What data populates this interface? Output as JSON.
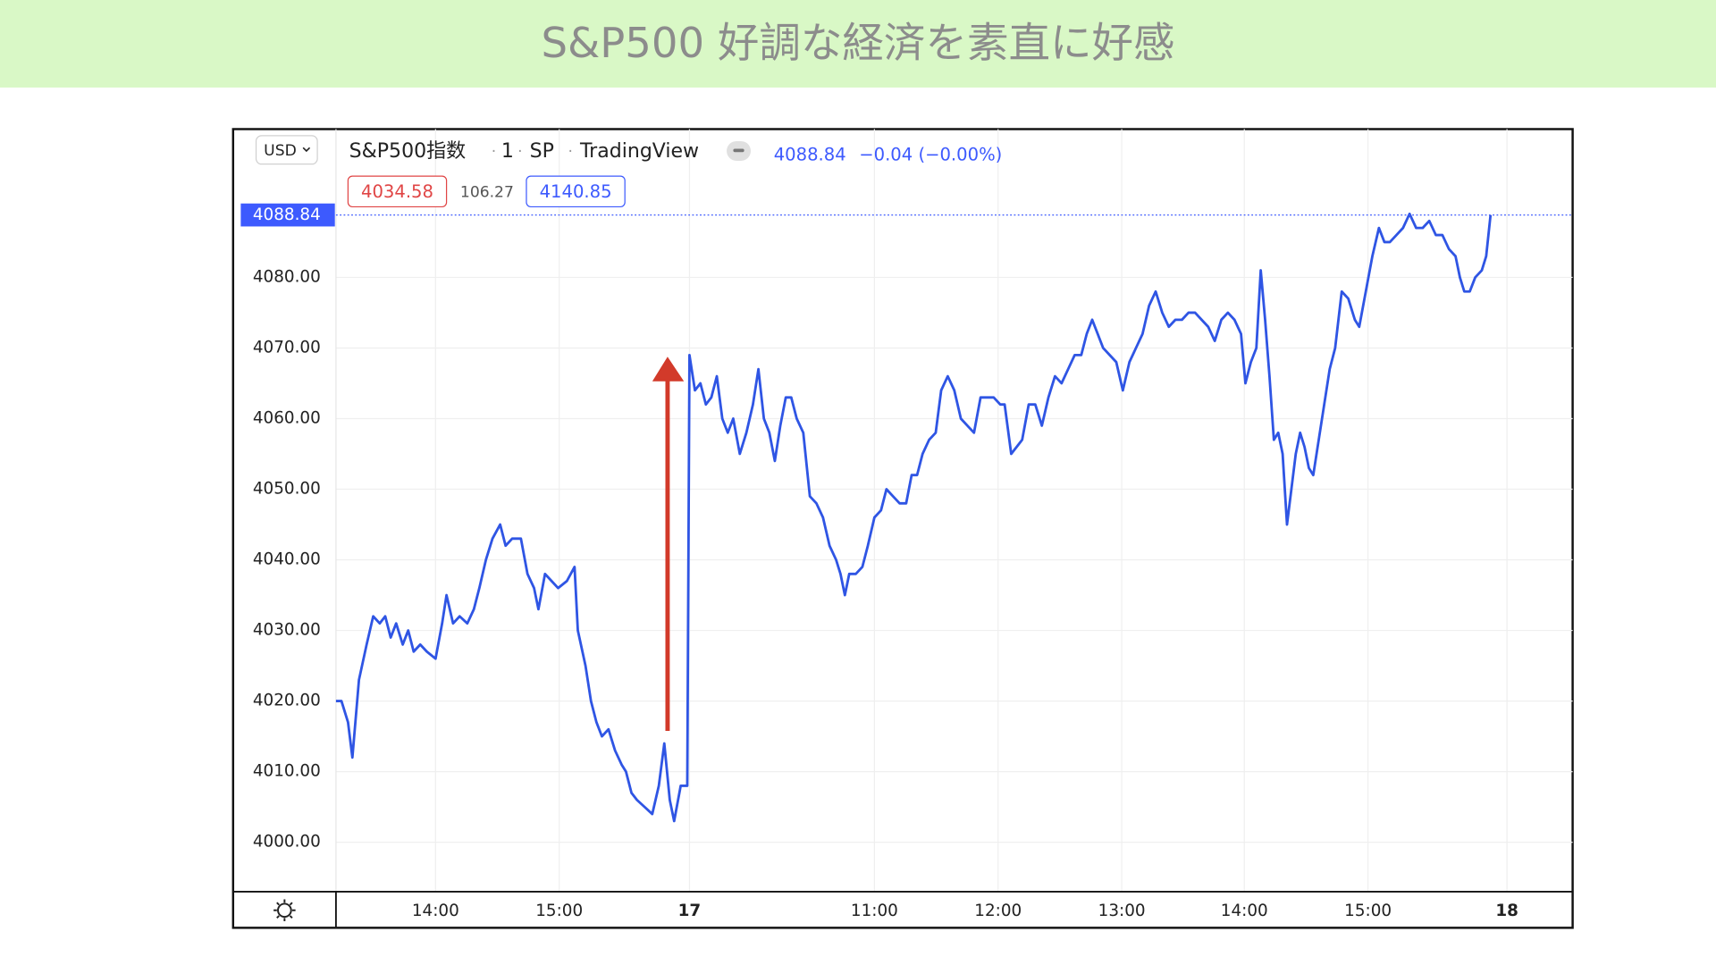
{
  "chart_data": {
    "type": "line",
    "title": "S&P500 好調な経済を素直に好感",
    "color": "#2f55e4",
    "grid": true,
    "xlim": [
      0,
      1130
    ],
    "ylim": [
      3993,
      4101
    ],
    "xticks": [
      {
        "value": 91,
        "label": "14:00"
      },
      {
        "value": 204,
        "label": "15:00"
      },
      {
        "value": 323,
        "label": "17"
      },
      {
        "value": 492,
        "label": "11:00"
      },
      {
        "value": 605,
        "label": "12:00"
      },
      {
        "value": 718,
        "label": "13:00"
      },
      {
        "value": 830,
        "label": "14:00"
      },
      {
        "value": 943,
        "label": "15:00"
      },
      {
        "value": 1070,
        "label": "18"
      }
    ],
    "yticks": [
      {
        "value": 4000,
        "label": "4000.00"
      },
      {
        "value": 4010,
        "label": "4010.00"
      },
      {
        "value": 4020,
        "label": "4020.00"
      },
      {
        "value": 4030,
        "label": "4030.00"
      },
      {
        "value": 4040,
        "label": "4040.00"
      },
      {
        "value": 4050,
        "label": "4050.00"
      },
      {
        "value": 4060,
        "label": "4060.00"
      },
      {
        "value": 4070,
        "label": "4070.00"
      },
      {
        "value": 4080,
        "label": "4080.00"
      }
    ],
    "last_price": 4088.84,
    "x": [
      0,
      5,
      11,
      15,
      21,
      28,
      34,
      40,
      45,
      50,
      55,
      61,
      66,
      71,
      77,
      83,
      91,
      97,
      101,
      107,
      113,
      120,
      126,
      131,
      137,
      143,
      150,
      155,
      161,
      169,
      175,
      181,
      185,
      191,
      197,
      203,
      211,
      218,
      221,
      228,
      233,
      238,
      243,
      249,
      255,
      261,
      265,
      270,
      275,
      282,
      289,
      295,
      300,
      305,
      309,
      315,
      321,
      323,
      328,
      333,
      338,
      343,
      348,
      353,
      358,
      363,
      369,
      375,
      381,
      386,
      391,
      396,
      401,
      406,
      411,
      416,
      421,
      427,
      433,
      439,
      445,
      451,
      457,
      461,
      465,
      469,
      475,
      481,
      486,
      492,
      498,
      503,
      509,
      515,
      521,
      526,
      531,
      536,
      542,
      548,
      553,
      559,
      565,
      571,
      577,
      583,
      589,
      595,
      601,
      607,
      611,
      617,
      622,
      627,
      633,
      639,
      645,
      651,
      657,
      663,
      669,
      675,
      681,
      686,
      691,
      696,
      701,
      707,
      713,
      719,
      725,
      731,
      737,
      743,
      749,
      755,
      761,
      767,
      773,
      779,
      785,
      791,
      797,
      803,
      809,
      815,
      821,
      827,
      831,
      836,
      841,
      845,
      849,
      853,
      857,
      861,
      865,
      869,
      873,
      877,
      881,
      885,
      889,
      893,
      898,
      903,
      908,
      913,
      919,
      925,
      931,
      935,
      941,
      947,
      953,
      958,
      963,
      969,
      975,
      981,
      987,
      993,
      999,
      1005,
      1011,
      1017,
      1023,
      1027,
      1031,
      1036,
      1041,
      1047,
      1051,
      1055
    ],
    "values": [
      4020,
      4020,
      4017,
      4012,
      4023,
      4028,
      4032,
      4031,
      4032,
      4029,
      4031,
      4028,
      4030,
      4027,
      4028,
      4027,
      4026,
      4031,
      4035,
      4031,
      4032,
      4031,
      4033,
      4036,
      4040,
      4043,
      4045,
      4042,
      4043,
      4043,
      4038,
      4036,
      4033,
      4038,
      4037,
      4036,
      4037,
      4039,
      4030,
      4025,
      4020,
      4017,
      4015,
      4016,
      4013,
      4011,
      4010,
      4007,
      4006,
      4005,
      4004,
      4008,
      4014,
      4006,
      4003,
      4008,
      4008,
      4069,
      4064,
      4065,
      4062,
      4063,
      4066,
      4060,
      4058,
      4060,
      4055,
      4058,
      4062,
      4067,
      4060,
      4058,
      4054,
      4059,
      4063,
      4063,
      4060,
      4058,
      4049,
      4048,
      4046,
      4042,
      4040,
      4038,
      4035,
      4038,
      4038,
      4039,
      4042,
      4046,
      4047,
      4050,
      4049,
      4048,
      4048,
      4052,
      4052,
      4055,
      4057,
      4058,
      4064,
      4066,
      4064,
      4060,
      4059,
      4058,
      4063,
      4063,
      4063,
      4062,
      4062,
      4055,
      4056,
      4057,
      4062,
      4062,
      4059,
      4063,
      4066,
      4065,
      4067,
      4069,
      4069,
      4072,
      4074,
      4072,
      4070,
      4069,
      4068,
      4064,
      4068,
      4070,
      4072,
      4076,
      4078,
      4075,
      4073,
      4074,
      4074,
      4075,
      4075,
      4074,
      4073,
      4071,
      4074,
      4075,
      4074,
      4072,
      4065,
      4068,
      4070,
      4081,
      4074,
      4066,
      4057,
      4058,
      4055,
      4045,
      4050,
      4055,
      4058,
      4056,
      4053,
      4052,
      4057,
      4062,
      4067,
      4070,
      4078,
      4077,
      4074,
      4073,
      4078,
      4083,
      4087,
      4085,
      4085,
      4086,
      4087,
      4089,
      4087,
      4087,
      4088,
      4086,
      4086,
      4084,
      4083,
      4080,
      4078,
      4078,
      4080,
      4081,
      4083,
      4088.84
    ]
  },
  "header": {
    "currency": "USD",
    "symbol": "S&P500指数",
    "interval": "1",
    "exchange": "SP",
    "source": "TradingView",
    "change": "−0.04 (−0.00%)",
    "sell": 4034.58,
    "spread": 106.27,
    "buy": 4140.85
  }
}
